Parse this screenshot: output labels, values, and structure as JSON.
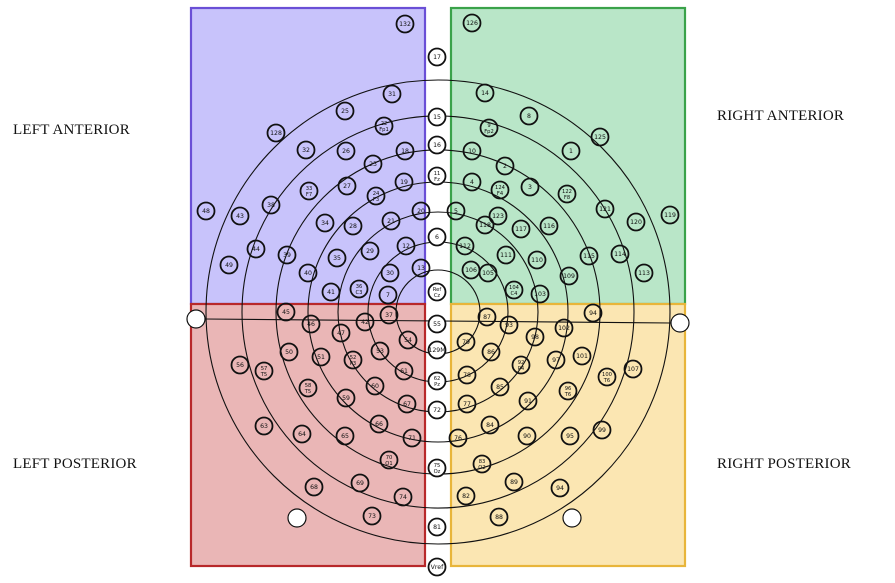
{
  "quadrants": {
    "left_anterior": {
      "label": "LEFT ANTERIOR",
      "fill": "#c8c3fb",
      "stroke": "#6a4fd6"
    },
    "right_anterior": {
      "label": "RIGHT ANTERIOR",
      "fill": "#b9e6c8",
      "stroke": "#3aa24a"
    },
    "left_posterior": {
      "label": "LEFT POSTERIOR",
      "fill": "#eab6b6",
      "stroke": "#b8282a"
    },
    "right_posterior": {
      "label": "RIGHT POSTERIOR",
      "fill": "#fbe6b2",
      "stroke": "#e8b53a"
    }
  },
  "electrodes": {
    "midline": [
      "17",
      "15",
      "16",
      "11\nFz",
      "6",
      "Ref\nCz",
      "55",
      "129M",
      "62\nPz",
      "72",
      "75\nOz",
      "81",
      "Vref"
    ],
    "left_anterior": [
      "132",
      "128",
      "31",
      "25",
      "22\nFp1",
      "32",
      "26",
      "18",
      "33\nF7",
      "27",
      "23",
      "19",
      "38",
      "24\nF3",
      "20",
      "12",
      "48",
      "43",
      "44",
      "39",
      "34",
      "28",
      "21",
      "13",
      "49",
      "40",
      "35",
      "29",
      "30",
      "7",
      "36\nC3",
      "41"
    ],
    "right_anterior": [
      "126",
      "14",
      "8",
      "9\nFp2",
      "1",
      "125",
      "10",
      "2",
      "3",
      "122\nF8",
      "4",
      "124\nF4",
      "118",
      "117",
      "116",
      "121",
      "5",
      "123",
      "120",
      "119",
      "112",
      "111",
      "110",
      "115",
      "114",
      "106",
      "105",
      "104\nC4",
      "103",
      "109",
      "113"
    ],
    "left_posterior": [
      "45",
      "46",
      "47",
      "42",
      "37",
      "50",
      "51",
      "52\nP3",
      "53",
      "54",
      "56",
      "57\nT5",
      "58\nT5",
      "60",
      "61",
      "59",
      "66",
      "67",
      "63",
      "64",
      "65",
      "71",
      "70\nO1",
      "68",
      "69",
      "74",
      "73"
    ],
    "right_posterior": [
      "87",
      "93",
      "98",
      "102",
      "94",
      "79",
      "86",
      "92\nP4",
      "97",
      "101",
      "78",
      "85",
      "91",
      "96\nT6",
      "100\nT6",
      "107",
      "77",
      "84",
      "90",
      "95",
      "99",
      "76",
      "83\nO2",
      "89",
      "82",
      "88",
      "94"
    ]
  }
}
